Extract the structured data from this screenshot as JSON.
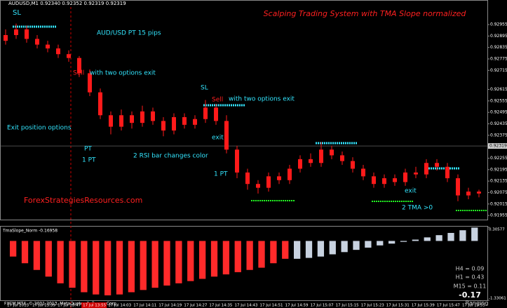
{
  "header": "AUDUSD,M1 0.92340 0.92352 0.92319 0.92319",
  "footer": "FXCM MT4, © 2001-2013, MetaQuotes Software Corp.",
  "chart_data": [
    {
      "type": "candlestick",
      "title": "Scalping Trading System with TMA Slope normalized",
      "color": "#ff1a1a",
      "open": [
        0.9287,
        0.929,
        0.9293,
        0.9288,
        0.9285,
        0.9283,
        0.928,
        0.9278,
        0.927,
        0.926,
        0.9248,
        0.9242,
        0.9248,
        0.9244,
        0.925,
        0.9245,
        0.924,
        0.9247,
        0.9243,
        0.9246,
        0.9252,
        0.9245,
        0.923,
        0.9218,
        0.9212,
        0.921,
        0.9216,
        0.9214,
        0.922,
        0.9225,
        0.9223,
        0.923,
        0.9227,
        0.9224,
        0.922,
        0.9216,
        0.9212,
        0.9215,
        0.9213,
        0.9218,
        0.9217,
        0.9223,
        0.9221,
        0.9215,
        0.9206,
        0.9208
      ],
      "high": [
        0.9293,
        0.9296,
        0.9295,
        0.929,
        0.9287,
        0.9285,
        0.9282,
        0.9279,
        0.9272,
        0.9262,
        0.925,
        0.9251,
        0.925,
        0.9253,
        0.9252,
        0.9247,
        0.9249,
        0.9249,
        0.9248,
        0.9256,
        0.9254,
        0.9248,
        0.9232,
        0.922,
        0.9214,
        0.9218,
        0.9218,
        0.9222,
        0.9227,
        0.9228,
        0.9234,
        0.9232,
        0.9229,
        0.9226,
        0.9222,
        0.9218,
        0.9217,
        0.9217,
        0.922,
        0.9221,
        0.9225,
        0.9225,
        0.9223,
        0.9217,
        0.921,
        0.9209
      ],
      "low": [
        0.9285,
        0.9288,
        0.9286,
        0.9283,
        0.9281,
        0.9278,
        0.9276,
        0.9268,
        0.9258,
        0.9246,
        0.9238,
        0.924,
        0.9241,
        0.9242,
        0.9243,
        0.9237,
        0.9238,
        0.9241,
        0.9241,
        0.9244,
        0.9243,
        0.9228,
        0.9215,
        0.9209,
        0.9207,
        0.9208,
        0.9212,
        0.9212,
        0.9218,
        0.9221,
        0.9221,
        0.9225,
        0.9222,
        0.9218,
        0.9214,
        0.921,
        0.921,
        0.9211,
        0.9211,
        0.9215,
        0.9215,
        0.9219,
        0.9213,
        0.9203,
        0.9204,
        0.9205
      ],
      "close": [
        0.929,
        0.9293,
        0.9288,
        0.9285,
        0.9283,
        0.928,
        0.9278,
        0.927,
        0.926,
        0.9248,
        0.9242,
        0.9248,
        0.9244,
        0.925,
        0.9245,
        0.924,
        0.9247,
        0.9243,
        0.9246,
        0.9252,
        0.9245,
        0.923,
        0.9218,
        0.9212,
        0.921,
        0.9216,
        0.9214,
        0.922,
        0.9225,
        0.9223,
        0.923,
        0.9227,
        0.9224,
        0.922,
        0.9216,
        0.9212,
        0.9215,
        0.9213,
        0.9218,
        0.9217,
        0.9223,
        0.9221,
        0.9215,
        0.9206,
        0.9208,
        0.9207
      ],
      "ylim": [
        0.91937,
        0.93047
      ],
      "yticks": [
        0.92955,
        0.92895,
        0.92835,
        0.92775,
        0.92715,
        0.92615,
        0.92555,
        0.92495,
        0.92435,
        0.92375,
        0.92255,
        0.92195,
        0.92135,
        0.92075,
        0.92015,
        0.91955
      ],
      "current_price": 0.92319,
      "x_labels": [
        "17 Jul 2013",
        "17 Jul 13:39",
        "17 Jul 13:47",
        "17 Jul 13:55",
        "17 Jul 14:03",
        "17 Jul 14:11",
        "17 Jul 14:19",
        "17 Jul 14:27",
        "17 Jul 14:35",
        "17 Jul 14:43",
        "17 Jul 14:51",
        "17 Jul 14:59",
        "17 Jul 15:07",
        "17 Jul 15:15",
        "17 Jul 15:23",
        "17 Jul 15:31",
        "17 Jul 15:39",
        "17 Jul 15:47",
        "17 Jul 15:55"
      ],
      "annotations": [
        "SL",
        "AUD/USD PT 15 pips",
        "Sell",
        "with two options exit",
        "SL",
        "Sell",
        "with two options exit",
        "Exit position options",
        "exit",
        "PT",
        "1 PT",
        "2 RSI bar changes color",
        "1 PT",
        "exit",
        "2 TMA >0",
        "ForexStrategiesResources.com"
      ]
    },
    {
      "type": "bar",
      "title": "TmaSlope_Norm -0.16958",
      "series": [
        {
          "color": "#ff2a2a",
          "values": [
            -0.35,
            -0.5,
            -0.65,
            -0.8,
            -0.95,
            -1.05,
            -1.15,
            -1.2,
            -1.22,
            -1.2,
            -1.15,
            -1.1,
            -1.05,
            -1.0,
            -0.95,
            -0.9,
            -0.85,
            -0.8,
            -0.75,
            -0.7,
            -0.65,
            -0.6,
            -0.5,
            -0.4,
            null,
            null,
            null,
            null,
            null,
            null,
            null,
            null,
            null,
            null,
            null,
            null,
            null,
            null,
            null,
            null
          ]
        },
        {
          "color": "#c8d2e0",
          "values": [
            null,
            null,
            null,
            null,
            null,
            null,
            null,
            null,
            null,
            null,
            null,
            null,
            null,
            null,
            null,
            null,
            null,
            null,
            null,
            null,
            null,
            null,
            null,
            null,
            -0.4,
            -0.38,
            -0.35,
            -0.3,
            -0.25,
            -0.2,
            -0.15,
            -0.1,
            -0.06,
            -0.02,
            0.03,
            0.08,
            0.13,
            0.18,
            0.24,
            0.3
          ]
        }
      ],
      "ylim": [
        -1.33061,
        0.30577
      ],
      "yticks": [
        0.30577,
        -1.33061
      ],
      "annotations": [
        "H4 = 0.09",
        "H1 = 0.43",
        "M15 = 0.11",
        "-0.17",
        "Ranging"
      ]
    }
  ]
}
